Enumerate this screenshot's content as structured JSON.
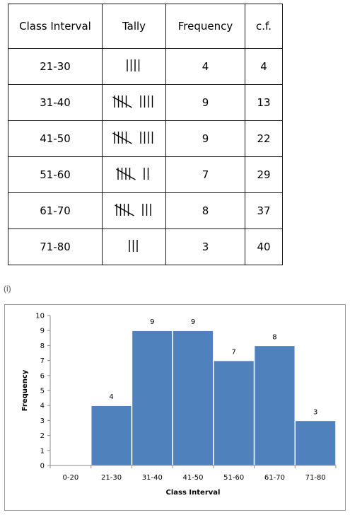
{
  "table": {
    "headers": [
      "Class Interval",
      "Tally",
      "Frequency",
      "c.f."
    ],
    "rows": [
      {
        "interval": "21-30",
        "tally": 4,
        "frequency": "4",
        "cf": "4"
      },
      {
        "interval": "31-40",
        "tally": 9,
        "frequency": "9",
        "cf": "13"
      },
      {
        "interval": "41-50",
        "tally": 9,
        "frequency": "9",
        "cf": "22"
      },
      {
        "interval": "51-60",
        "tally": 7,
        "frequency": "7",
        "cf": "29"
      },
      {
        "interval": "61-70",
        "tally": 8,
        "frequency": "8",
        "cf": "37"
      },
      {
        "interval": "71-80",
        "tally": 3,
        "frequency": "3",
        "cf": "40"
      }
    ]
  },
  "part_label": "(i)",
  "chart_data": {
    "type": "bar",
    "categories": [
      "0-20",
      "21-30",
      "31-40",
      "41-50",
      "51-60",
      "61-70",
      "71-80"
    ],
    "values": [
      0,
      4,
      9,
      9,
      7,
      8,
      3
    ],
    "data_labels": [
      "",
      "4",
      "9",
      "9",
      "7",
      "8",
      "3"
    ],
    "xlabel": "Class Interval",
    "ylabel": "Frequency",
    "ylim": [
      0,
      10
    ],
    "yticks": [
      0,
      1,
      2,
      3,
      4,
      5,
      6,
      7,
      8,
      9,
      10
    ],
    "bar_color": "#4f81bd",
    "bar_edge_color": "#ffffff",
    "grid": false,
    "legend": false
  }
}
